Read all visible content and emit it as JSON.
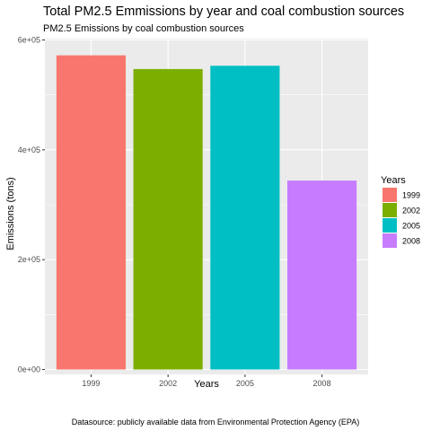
{
  "chart_data": {
    "type": "bar",
    "title": "Total PM2.5 Emmissions by year and coal combustion sources",
    "subtitle": "PM2.5 Emissions by coal combustion sources",
    "xlabel": "Years",
    "ylabel": "Emissions (tons)",
    "categories": [
      "1999",
      "2002",
      "2005",
      "2008"
    ],
    "values": [
      572000,
      547000,
      553000,
      344000
    ],
    "colors": [
      "#F8766D",
      "#7CAE00",
      "#00BFC4",
      "#C77CFF"
    ],
    "ylim": [
      0,
      600000
    ],
    "yticks": [
      0,
      200000,
      400000,
      600000
    ],
    "ytick_labels": [
      "0e+00",
      "2e+05",
      "4e+05",
      "6e+05"
    ],
    "legend": {
      "title": "Years",
      "entries": [
        "1999",
        "2002",
        "2005",
        "2008"
      ],
      "position": "right"
    },
    "caption": "Datasource: publicly available data from Environmental Protection Agency (EPA)",
    "grid": true,
    "panel_background": "#EBEBEB"
  }
}
